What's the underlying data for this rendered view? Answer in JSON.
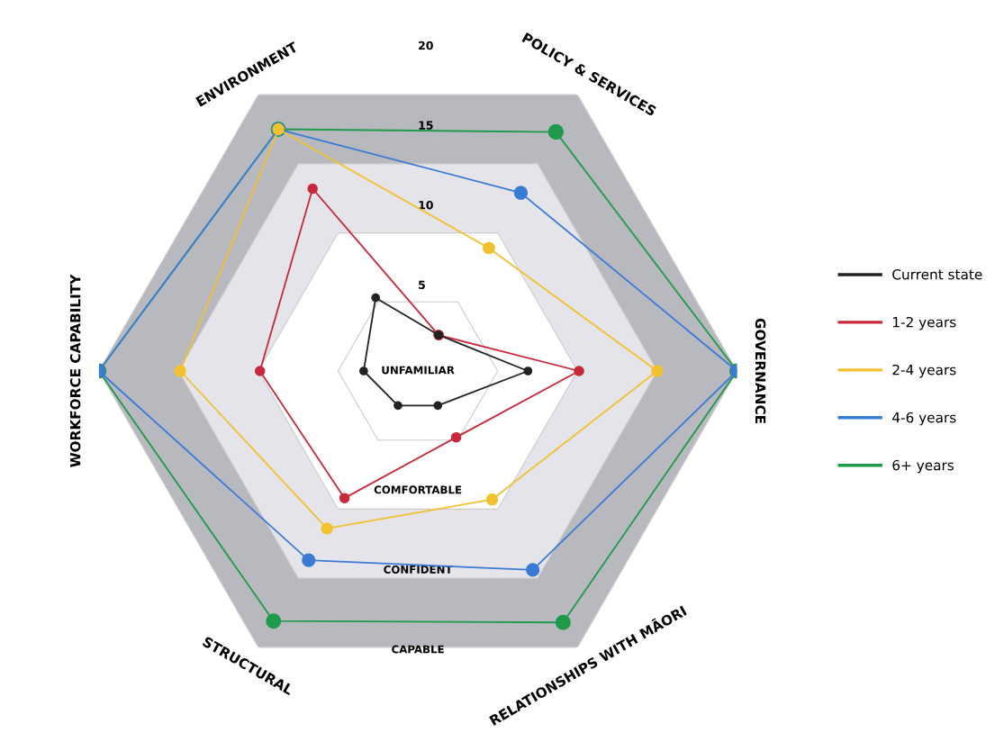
{
  "chart_data": {
    "type": "radar",
    "categories": [
      "POLICY & SERVICES",
      "GOVERNANCE",
      "RELATIONSHIPS WITH MĀORI",
      "STRUCTURAL",
      "WORKFORCE CAPABILITY",
      "ENVIRONMENT"
    ],
    "series": [
      {
        "name": "Current state",
        "color": "#222222",
        "values": [
          2.6,
          6.9,
          2.5,
          2.5,
          3.4,
          5.3
        ]
      },
      {
        "name": "1-2 years",
        "color": "#c8283a",
        "values": [
          2.6,
          10.1,
          4.8,
          9.2,
          9.9,
          13.2
        ]
      },
      {
        "name": "2-4 years",
        "color": "#f2c12e",
        "values": [
          8.9,
          15.0,
          9.3,
          11.4,
          14.9,
          17.5
        ]
      },
      {
        "name": "4-6 years",
        "color": "#3a7bd5",
        "values": [
          12.9,
          20,
          14.4,
          13.7,
          20,
          17.5
        ]
      },
      {
        "name": "6+ years",
        "color": "#1f9a4a",
        "values": [
          17.3,
          20,
          18.2,
          18.1,
          20,
          17.5
        ]
      }
    ],
    "ylim": [
      0,
      20
    ],
    "yticks": [
      5,
      10,
      15,
      20
    ],
    "annotations": [
      "UNFAMILIAR",
      "COMFORTABLE",
      "CONFIDENT",
      "CAPABLE"
    ],
    "grid": true,
    "legend": "right",
    "marker": "circle",
    "line_style": "solid"
  }
}
